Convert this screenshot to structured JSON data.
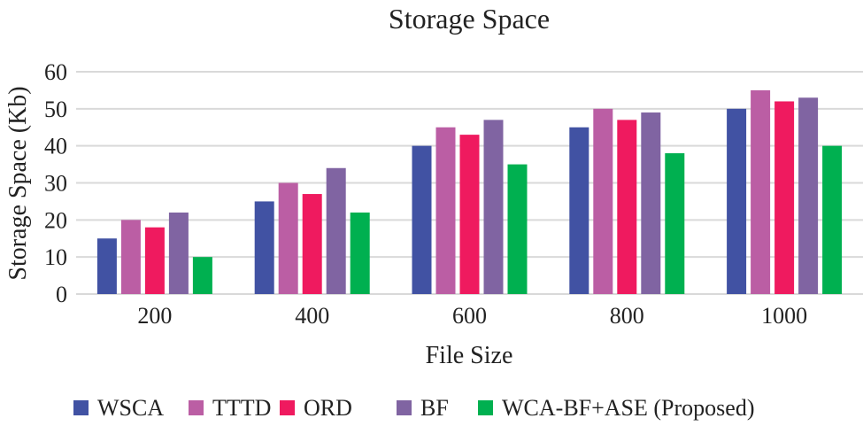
{
  "chart_data": {
    "type": "bar",
    "title": "Storage Space",
    "xlabel": "File Size",
    "ylabel": "Storage Space (Kb)",
    "ylim": [
      0,
      60
    ],
    "yticks": [
      0,
      10,
      20,
      30,
      40,
      50,
      60
    ],
    "grid": true,
    "legend_position": "bottom",
    "categories": [
      "200",
      "400",
      "600",
      "800",
      "1000"
    ],
    "series": [
      {
        "name": "WSCA",
        "color": "#4152a3",
        "values": [
          15,
          25,
          40,
          45,
          50
        ]
      },
      {
        "name": "TTTD",
        "color": "#bb5ea4",
        "values": [
          20,
          30,
          45,
          50,
          55
        ]
      },
      {
        "name": "ORD",
        "color": "#ef1a5f",
        "values": [
          18,
          27,
          43,
          47,
          52
        ]
      },
      {
        "name": "BF",
        "color": "#8064a2",
        "values": [
          22,
          34,
          47,
          49,
          53
        ]
      },
      {
        "name": "WCA-BF+ASE (Proposed)",
        "color": "#00b050",
        "values": [
          10,
          22,
          35,
          38,
          40
        ]
      }
    ]
  }
}
